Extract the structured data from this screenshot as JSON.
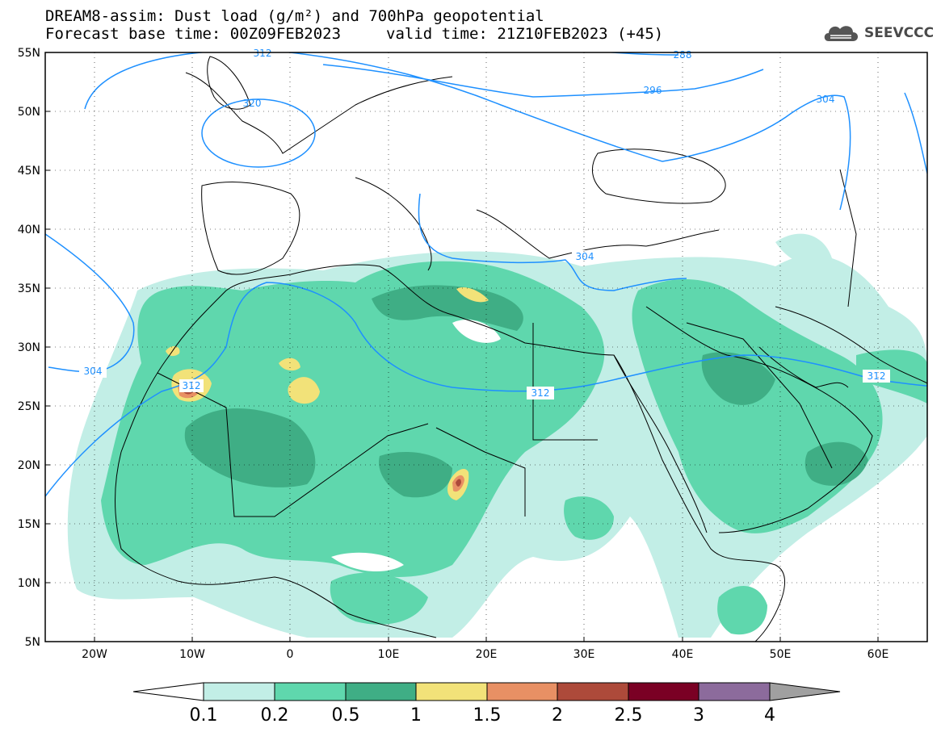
{
  "header": {
    "title_line1": "DREAM8-assim: Dust load (g/m²) and 700hPa geopotential",
    "base_time": "Forecast base time: 00Z09FEB2023",
    "valid_time": "valid time: 21Z10FEB2023 (+45)",
    "logo_text": "SEEVCCC",
    "logo_icon": "cloud-icon"
  },
  "axes": {
    "lat_labels": [
      "55N",
      "50N",
      "45N",
      "40N",
      "35N",
      "30N",
      "25N",
      "20N",
      "15N",
      "10N",
      "5N"
    ],
    "lon_labels": [
      "20W",
      "10W",
      "0",
      "10E",
      "20E",
      "30E",
      "40E",
      "50E",
      "60E"
    ]
  },
  "contours": {
    "labels": [
      "312",
      "320",
      "288",
      "296",
      "304",
      "304",
      "312",
      "312",
      "312",
      "304"
    ]
  },
  "colorbar": {
    "ticks": [
      "0.1",
      "0.2",
      "0.5",
      "1",
      "1.5",
      "2",
      "2.5",
      "3",
      "4"
    ],
    "colors": [
      "#ffffff",
      "#c2eee6",
      "#5fd7ad",
      "#3fae85",
      "#f2e279",
      "#e89064",
      "#ad4a3a",
      "#7a0024",
      "#8c6b9c",
      "#a0a0a0"
    ]
  },
  "colors": {
    "dust_low": "#c2eee6",
    "dust_mid": "#5fd7ad",
    "dust_high": "#3fae85",
    "dust_yellow": "#f2e279",
    "dust_orange": "#e89064",
    "dust_red": "#ad4a3a",
    "contour": "#1e90ff"
  }
}
